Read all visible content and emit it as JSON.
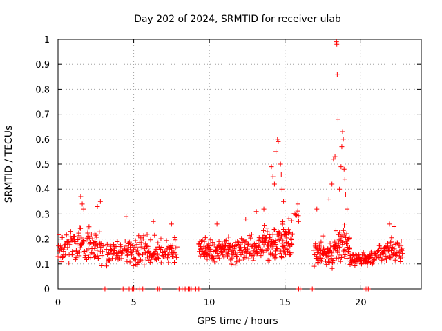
{
  "chart_data": {
    "type": "scatter",
    "title": "Day 202 of 2024, SRMTID for receiver ulab",
    "xlabel": "GPS time / hours",
    "ylabel": "SRMTID / TECUs",
    "xlim": [
      0,
      24
    ],
    "ylim": [
      0,
      1
    ],
    "xticks": [
      "0",
      "5",
      "10",
      "15",
      "20"
    ],
    "xtick_values": [
      0,
      5,
      10,
      15,
      20
    ],
    "yticks": [
      "0",
      "0.1",
      "0.2",
      "0.3",
      "0.4",
      "0.5",
      "0.6",
      "0.7",
      "0.8",
      "0.9",
      "1"
    ],
    "ytick_values": [
      0,
      0.1,
      0.2,
      0.3,
      0.4,
      0.5,
      0.6,
      0.7,
      0.8,
      0.9,
      1.0
    ],
    "grid": true,
    "marker": "+",
    "series_color": "#ff0000",
    "grid_color": "#a0a0a0",
    "segments": [
      {
        "x0": 0.0,
        "x1": 3.0,
        "base": 0.17,
        "spread": 0.09,
        "step": 0.035
      },
      {
        "x0": 3.2,
        "x1": 4.3,
        "base": 0.14,
        "spread": 0.06,
        "step": 0.035
      },
      {
        "x0": 4.4,
        "x1": 5.1,
        "base": 0.15,
        "spread": 0.07,
        "step": 0.035
      },
      {
        "x0": 5.1,
        "x1": 7.9,
        "base": 0.15,
        "spread": 0.08,
        "step": 0.035
      },
      {
        "x0": 9.3,
        "x1": 13.5,
        "base": 0.16,
        "spread": 0.07,
        "step": 0.03
      },
      {
        "x0": 13.5,
        "x1": 15.5,
        "base": 0.19,
        "spread": 0.1,
        "step": 0.025
      },
      {
        "x0": 15.6,
        "x1": 15.9,
        "base": 0.3,
        "spread": 0.04,
        "step": 0.08
      },
      {
        "x0": 16.9,
        "x1": 18.2,
        "base": 0.14,
        "spread": 0.08,
        "step": 0.03
      },
      {
        "x0": 18.2,
        "x1": 19.3,
        "base": 0.18,
        "spread": 0.1,
        "step": 0.025
      },
      {
        "x0": 19.3,
        "x1": 21.0,
        "base": 0.12,
        "spread": 0.04,
        "step": 0.035
      },
      {
        "x0": 21.0,
        "x1": 22.8,
        "base": 0.15,
        "spread": 0.07,
        "step": 0.035
      }
    ],
    "peaks": [
      {
        "x": 1.5,
        "y": 0.37
      },
      {
        "x": 1.6,
        "y": 0.34
      },
      {
        "x": 1.7,
        "y": 0.32
      },
      {
        "x": 2.6,
        "y": 0.33
      },
      {
        "x": 2.8,
        "y": 0.35
      },
      {
        "x": 4.5,
        "y": 0.29
      },
      {
        "x": 6.3,
        "y": 0.27
      },
      {
        "x": 7.5,
        "y": 0.26
      },
      {
        "x": 10.5,
        "y": 0.26
      },
      {
        "x": 12.4,
        "y": 0.28
      },
      {
        "x": 13.1,
        "y": 0.31
      },
      {
        "x": 13.6,
        "y": 0.32
      },
      {
        "x": 14.1,
        "y": 0.49
      },
      {
        "x": 14.2,
        "y": 0.45
      },
      {
        "x": 14.3,
        "y": 0.42
      },
      {
        "x": 14.4,
        "y": 0.55
      },
      {
        "x": 14.5,
        "y": 0.6
      },
      {
        "x": 14.55,
        "y": 0.59
      },
      {
        "x": 14.7,
        "y": 0.5
      },
      {
        "x": 14.75,
        "y": 0.46
      },
      {
        "x": 14.8,
        "y": 0.4
      },
      {
        "x": 14.9,
        "y": 0.35
      },
      {
        "x": 15.85,
        "y": 0.34
      },
      {
        "x": 15.9,
        "y": 0.27
      },
      {
        "x": 17.1,
        "y": 0.32
      },
      {
        "x": 17.9,
        "y": 0.36
      },
      {
        "x": 18.1,
        "y": 0.42
      },
      {
        "x": 18.2,
        "y": 0.52
      },
      {
        "x": 18.3,
        "y": 0.53
      },
      {
        "x": 18.4,
        "y": 0.99
      },
      {
        "x": 18.42,
        "y": 0.98
      },
      {
        "x": 18.45,
        "y": 0.86
      },
      {
        "x": 18.5,
        "y": 0.68
      },
      {
        "x": 18.6,
        "y": 0.4
      },
      {
        "x": 18.7,
        "y": 0.49
      },
      {
        "x": 18.75,
        "y": 0.57
      },
      {
        "x": 18.8,
        "y": 0.63
      },
      {
        "x": 18.85,
        "y": 0.6
      },
      {
        "x": 18.9,
        "y": 0.48
      },
      {
        "x": 18.95,
        "y": 0.44
      },
      {
        "x": 19.0,
        "y": 0.38
      },
      {
        "x": 19.1,
        "y": 0.32
      },
      {
        "x": 21.9,
        "y": 0.26
      },
      {
        "x": 22.2,
        "y": 0.25
      }
    ],
    "zero_points": [
      3.1,
      4.3,
      4.7,
      4.9,
      5.0,
      5.4,
      5.6,
      6.6,
      6.7,
      8.0,
      8.2,
      8.4,
      8.6,
      8.7,
      8.8,
      9.1,
      9.3,
      15.9,
      16.0,
      16.8,
      20.3,
      20.4,
      20.5
    ]
  }
}
